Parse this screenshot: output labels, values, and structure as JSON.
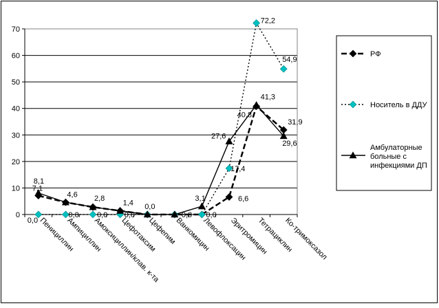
{
  "chart_data": {
    "type": "line",
    "title": "",
    "xlabel": "",
    "ylabel": "",
    "ylim": [
      0,
      70
    ],
    "yticks": [
      0,
      10,
      20,
      30,
      40,
      50,
      60,
      70
    ],
    "grid": true,
    "legend_position": "right",
    "categories": [
      "Пенициллин",
      "Ампициллин",
      "Амоксициллин/клав. к-та",
      "Цефотаксим",
      "Цефепим",
      "Ванкомицин",
      "Левофлоксацин",
      "Эритромицин",
      "Тетрациклин",
      "Ко-тримоксазол"
    ],
    "series": [
      {
        "name": "РФ",
        "values": [
          7.1,
          4.6,
          2.8,
          1.4,
          0.0,
          0.0,
          0.0,
          6.6,
          40.8,
          31.9
        ],
        "labels": [
          "7,1",
          "4,6",
          "2,8",
          "1,4",
          "0,0",
          "",
          "",
          "6,6",
          "40,8",
          "31,9"
        ],
        "color": "#000000",
        "marker": "diamond",
        "dash": "8,4"
      },
      {
        "name": "Носитель в ДДУ",
        "values": [
          0.0,
          0.0,
          0.0,
          0.0,
          0.0,
          0.0,
          0.0,
          17.4,
          72.2,
          54.9
        ],
        "labels": [
          "0,0",
          "0,0",
          "0,0",
          "0,0",
          "",
          "0,0",
          "0,0",
          "17,4",
          "72,2",
          "54,9"
        ],
        "color": "#000000",
        "marker_color": "#00c0c0",
        "marker": "diamond",
        "dash": "2,3"
      },
      {
        "name": "Амбулаторные больные с инфекциями ДП",
        "values": [
          8.1,
          4.6,
          2.8,
          1.4,
          0.0,
          0.0,
          3.1,
          27.6,
          41.3,
          29.6
        ],
        "labels": [
          "8,1",
          "",
          "",
          "",
          "",
          "",
          "3,1",
          "27,6",
          "41,3",
          "29,6"
        ],
        "color": "#000000",
        "marker": "triangle",
        "dash": ""
      }
    ]
  }
}
